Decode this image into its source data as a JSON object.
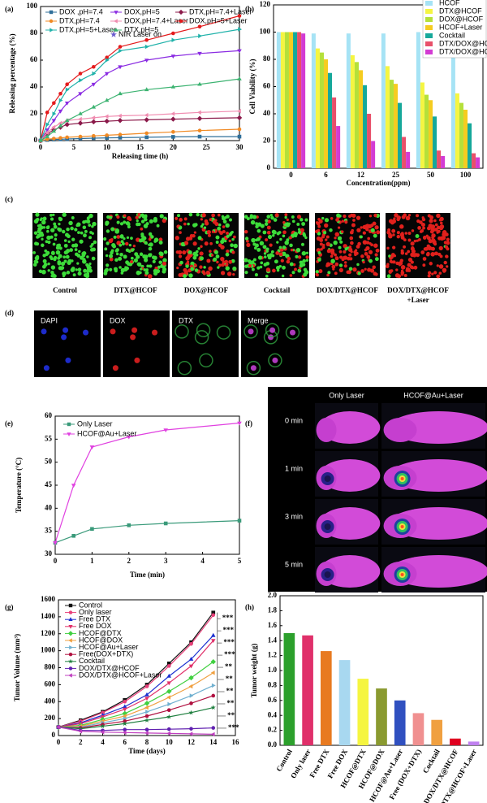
{
  "chart_data": [
    {
      "type": "line",
      "panel": "(a)",
      "xlabel": "Releasing time (h)",
      "ylabel": "Releasing percentage (%)",
      "xlim": [
        0,
        30
      ],
      "ylim": [
        0,
        100
      ],
      "xticks": [
        0,
        5,
        10,
        15,
        20,
        25,
        30
      ],
      "yticks": [
        0,
        20,
        40,
        60,
        80,
        100
      ],
      "annotation": "NIR Laser on",
      "x": [
        0,
        1,
        2,
        3,
        4,
        6,
        8,
        10,
        12,
        16,
        20,
        24,
        30
      ],
      "series": [
        {
          "name": "DOX ,pH=7.4",
          "color": "#2f6f9a",
          "marker": "square",
          "values": [
            0,
            0.5,
            0.8,
            1,
            1.2,
            1.5,
            1.8,
            2,
            2.2,
            2.5,
            2.8,
            3,
            3
          ]
        },
        {
          "name": "DOX,pH=5",
          "color": "#8a2be2",
          "marker": "triangle-down",
          "values": [
            0,
            8,
            15,
            22,
            28,
            35,
            42,
            50,
            55,
            60,
            63,
            65,
            67
          ]
        },
        {
          "name": "DTX,pH=7.4+Laser",
          "color": "#8b1a4a",
          "marker": "diamond",
          "values": [
            0,
            5,
            8,
            10,
            12,
            13,
            14,
            14.5,
            15,
            15.5,
            16,
            16.5,
            17
          ]
        },
        {
          "name": "DTX,pH=7.4",
          "color": "#f08a24",
          "marker": "circle",
          "values": [
            0,
            1,
            1.5,
            2,
            2.5,
            3,
            3.5,
            4,
            4.5,
            5.5,
            6.5,
            7.5,
            8.5
          ]
        },
        {
          "name": "DOX,pH=7.4+Laser",
          "color": "#f08cb0",
          "marker": "triangle-left",
          "values": [
            0,
            6,
            10,
            13,
            15,
            16,
            17,
            18,
            18.5,
            19,
            20,
            21,
            22
          ]
        },
        {
          "name": "DOX,pH=5+Laser",
          "color": "#e41a1c",
          "marker": "circle",
          "values": [
            0,
            21,
            28,
            35,
            42,
            50,
            55,
            62,
            70,
            75,
            80,
            85,
            93
          ]
        },
        {
          "name": "DTX,pH=5+Laser",
          "color": "#20b2aa",
          "marker": "triangle-right",
          "values": [
            0,
            12,
            20,
            30,
            38,
            45,
            50,
            60,
            67,
            70,
            75,
            78,
            83
          ]
        },
        {
          "name": "DTX,pH=5",
          "color": "#3cb371",
          "marker": "triangle-up",
          "values": [
            0,
            3,
            7,
            11,
            15,
            20,
            25,
            30,
            35,
            38,
            40,
            42,
            46
          ]
        }
      ]
    },
    {
      "type": "grouped-bar",
      "panel": "(b)",
      "xlabel": "Concentration(ppm)",
      "ylabel": "Cell Viability (%)",
      "ylim": [
        0,
        120
      ],
      "yticks": [
        0,
        20,
        40,
        60,
        80,
        100,
        120
      ],
      "categories": [
        "0",
        "6",
        "12",
        "25",
        "50",
        "100"
      ],
      "series": [
        {
          "name": "HCOF",
          "color": "#a6e3f5",
          "values": [
            100,
            99,
            99,
            99,
            100,
            100
          ]
        },
        {
          "name": "DTX@HCOF",
          "color": "#f5f542",
          "values": [
            100,
            88,
            83,
            75,
            63,
            55
          ]
        },
        {
          "name": "DOX@HCOF",
          "color": "#b5e03a",
          "values": [
            100,
            85,
            78,
            65,
            54,
            48
          ]
        },
        {
          "name": "HCOF+Laser",
          "color": "#f5cc20",
          "values": [
            100,
            80,
            72,
            62,
            50,
            43
          ]
        },
        {
          "name": "Cocktail",
          "color": "#16a89a",
          "values": [
            100,
            70,
            61,
            48,
            38,
            33
          ]
        },
        {
          "name": "DTX/DOX@HCOF",
          "color": "#e8506a",
          "values": [
            100,
            52,
            40,
            23,
            13,
            11
          ]
        },
        {
          "name": "DTX/DOX@HCOF+Laser",
          "color": "#d33bd3",
          "values": [
            99,
            31,
            20,
            12,
            9,
            8
          ]
        }
      ]
    },
    {
      "type": "line",
      "panel": "(e)",
      "xlabel": "Time (min)",
      "ylabel": "Temperature (°C)",
      "xlim": [
        0,
        5
      ],
      "ylim": [
        30,
        60
      ],
      "xticks": [
        0,
        1,
        2,
        3,
        4,
        5
      ],
      "yticks": [
        30,
        35,
        40,
        45,
        50,
        55,
        60
      ],
      "x": [
        0,
        0.5,
        1,
        2,
        3,
        5
      ],
      "series": [
        {
          "name": "Only Laser",
          "color": "#3a9a7a",
          "marker": "square",
          "values": [
            32.5,
            34,
            35.5,
            36.3,
            36.7,
            37.3
          ]
        },
        {
          "name": "HCOF@Au+Laser",
          "color": "#e040e0",
          "marker": "triangle-down",
          "values": [
            32.5,
            45,
            53.3,
            55.5,
            57,
            58.5
          ]
        }
      ]
    },
    {
      "type": "line",
      "panel": "(g)",
      "xlabel": "Time (days)",
      "ylabel": "Tumor Volume (mm³)",
      "xlim": [
        0,
        16
      ],
      "ylim": [
        0,
        1600
      ],
      "xticks": [
        0,
        2,
        4,
        6,
        8,
        10,
        12,
        14,
        16
      ],
      "yticks": [
        0,
        200,
        400,
        600,
        800,
        1000,
        1200,
        1400,
        1600
      ],
      "x": [
        0,
        2,
        4,
        6,
        8,
        10,
        12,
        14
      ],
      "significance": [
        "***",
        "***",
        "***",
        "***",
        "**",
        "**",
        "**",
        "**",
        "**",
        "***"
      ],
      "series": [
        {
          "name": "Control",
          "color": "#111111",
          "marker": "square",
          "values": [
            100,
            180,
            280,
            420,
            600,
            850,
            1100,
            1450
          ]
        },
        {
          "name": "Only laser",
          "color": "#e8407a",
          "marker": "circle",
          "values": [
            100,
            170,
            270,
            400,
            580,
            820,
            1080,
            1420
          ]
        },
        {
          "name": "Free DTX",
          "color": "#1a2fd0",
          "marker": "triangle-up",
          "values": [
            100,
            150,
            240,
            340,
            480,
            700,
            900,
            1180
          ]
        },
        {
          "name": "Free DOX",
          "color": "#e0306a",
          "marker": "triangle-down",
          "values": [
            100,
            140,
            220,
            310,
            440,
            620,
            820,
            1120
          ]
        },
        {
          "name": "HCOF@DTX",
          "color": "#40d040",
          "marker": "diamond",
          "values": [
            100,
            120,
            190,
            260,
            380,
            520,
            680,
            870
          ]
        },
        {
          "name": "HCOF@DOX",
          "color": "#f0a040",
          "marker": "triangle-left",
          "values": [
            100,
            110,
            170,
            230,
            330,
            450,
            580,
            740
          ]
        },
        {
          "name": "HCOF@Au+Laser",
          "color": "#70b0d0",
          "marker": "triangle-right",
          "values": [
            100,
            100,
            150,
            200,
            280,
            370,
            470,
            590
          ]
        },
        {
          "name": "Free(DOX+DTX)",
          "color": "#b01040",
          "marker": "circle",
          "values": [
            100,
            90,
            130,
            170,
            230,
            300,
            380,
            470
          ]
        },
        {
          "name": "Cocktail",
          "color": "#208040",
          "marker": "star",
          "values": [
            100,
            80,
            110,
            140,
            180,
            220,
            270,
            330
          ]
        },
        {
          "name": "DOX/DTX@HCOF",
          "color": "#6020b0",
          "marker": "circle",
          "values": [
            100,
            60,
            60,
            70,
            70,
            75,
            80,
            90
          ]
        },
        {
          "name": "DOX/DTX@HCOF+Laser",
          "color": "#c040c0",
          "marker": "triangle-left",
          "values": [
            100,
            50,
            40,
            35,
            30,
            25,
            20,
            15
          ]
        }
      ]
    },
    {
      "type": "bar",
      "panel": "(h)",
      "ylabel": "Tumor weight (g)",
      "ylim": [
        0,
        2
      ],
      "yticks": [
        {
          "value": 0,
          "label": "0.0"
        },
        0.2,
        0.4,
        0.6,
        0.8,
        {
          "value": 1,
          "label": "1.0"
        },
        1.2,
        1.4,
        1.6,
        1.8,
        {
          "value": 2,
          "label": "2.0"
        }
      ],
      "categories": [
        "Control",
        "Only laser",
        "Free DTX",
        "Free DOX",
        "HCOF@DTX",
        "HCOF@DOX",
        "HCOF@Au+Laser",
        "Free (DOX+DTX)",
        "Cocktail",
        "DOX/DTX@HCOF",
        "DOX/DTX@HCOF+Laser"
      ],
      "values": [
        1.5,
        1.47,
        1.26,
        1.14,
        0.89,
        0.76,
        0.6,
        0.43,
        0.34,
        0.09,
        0.05
      ],
      "colors": [
        "#2ca02c",
        "#e0306a",
        "#e87a20",
        "#a8d8f0",
        "#f5f540",
        "#8a9a30",
        "#3050c0",
        "#f09090",
        "#f0a040",
        "#e00020",
        "#c080f0"
      ]
    }
  ],
  "panel_c": {
    "label": "(c)",
    "captions": [
      [
        "Control"
      ],
      [
        "DTX@HCOF"
      ],
      [
        "DOX@HCOF"
      ],
      [
        "Cocktail"
      ],
      [
        "DOX/DTX@HCOF"
      ],
      [
        "DOX/DTX@HCOF",
        "+Laser"
      ]
    ]
  },
  "panel_d": {
    "label": "(d)",
    "channels": [
      "DAPI",
      "DOX",
      "DTX",
      "Merge"
    ]
  },
  "panel_f": {
    "label": "(f)",
    "columns": [
      "Only Laser",
      "HCOF@Au+Laser"
    ],
    "rows": [
      "0 min",
      "1 min",
      "3 min",
      "5 min"
    ]
  }
}
